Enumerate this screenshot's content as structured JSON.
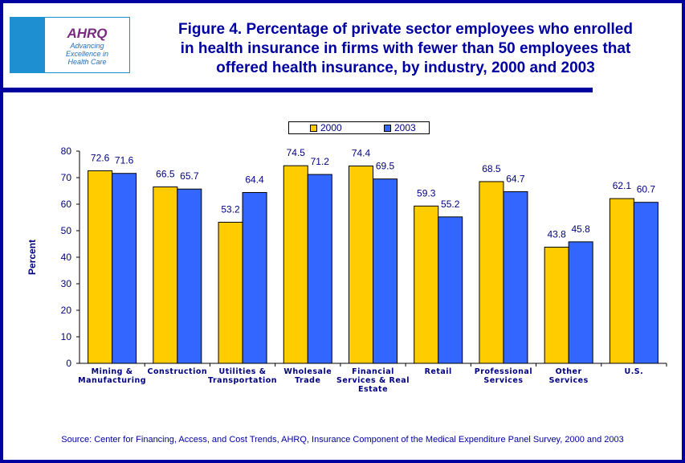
{
  "logo": {
    "brand": "AHRQ",
    "tagline": [
      "Advancing",
      "Excellence in",
      "Health Care"
    ]
  },
  "chart_data": {
    "type": "bar",
    "title": "Figure 4.  Percentage of private sector employees who enrolled in health insurance in firms with fewer than 50 employees that offered health insurance, by industry, 2000 and 2003",
    "title_lines": [
      "Figure 4.  Percentage of private sector employees who enrolled",
      "in health insurance in firms with fewer than 50 employees that",
      "offered health insurance, by industry, 2000 and 2003"
    ],
    "categories": [
      [
        "Mining &",
        "Manufacturing"
      ],
      [
        "Construction"
      ],
      [
        "Utilities &",
        "Transportation"
      ],
      [
        "Wholesale",
        "Trade"
      ],
      [
        "Financial",
        "Services & Real",
        "Estate"
      ],
      [
        "Retail"
      ],
      [
        "Professional",
        "Services"
      ],
      [
        "Other",
        "Services"
      ],
      [
        "U.S."
      ]
    ],
    "series": [
      {
        "name": "2000",
        "color": "#ffcc00",
        "values": [
          72.6,
          66.5,
          53.2,
          74.5,
          74.4,
          59.3,
          68.5,
          43.8,
          62.1
        ]
      },
      {
        "name": "2003",
        "color": "#3366ff",
        "values": [
          71.6,
          65.7,
          64.4,
          71.2,
          69.5,
          55.2,
          64.7,
          45.8,
          60.7
        ]
      }
    ],
    "ylabel": "Percent",
    "xlabel": "",
    "ylim": [
      0,
      80
    ],
    "yticks": [
      0,
      10,
      20,
      30,
      40,
      50,
      60,
      70,
      80
    ],
    "grid": false,
    "legend": "top"
  },
  "source": "Source: Center for Financing, Access, and Cost Trends, AHRQ, Insurance Component of the Medical Expenditure Panel Survey, 2000 and 2003",
  "colors": {
    "frame": "#0000a0",
    "text": "#0000a0"
  }
}
